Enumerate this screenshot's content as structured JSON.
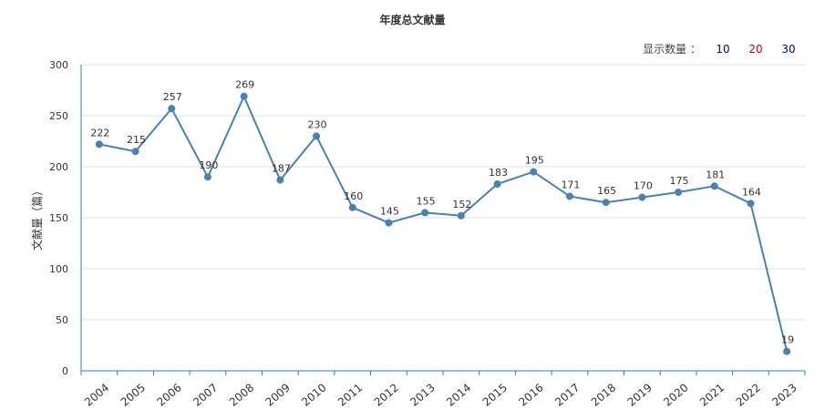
{
  "chart_data": {
    "type": "line",
    "title": "年度总文献量",
    "ylabel": "文献量（篇）",
    "xlabel": "",
    "categories": [
      "2004",
      "2005",
      "2006",
      "2007",
      "2008",
      "2009",
      "2010",
      "2011",
      "2012",
      "2013",
      "2014",
      "2015",
      "2016",
      "2017",
      "2018",
      "2019",
      "2020",
      "2021",
      "2022",
      "2023"
    ],
    "values": [
      222,
      215,
      257,
      190,
      269,
      187,
      230,
      160,
      145,
      155,
      152,
      183,
      195,
      171,
      165,
      170,
      175,
      181,
      164,
      19
    ],
    "ylim": [
      0,
      300
    ],
    "yticks": [
      0,
      50,
      100,
      150,
      200,
      250,
      300
    ],
    "grid": true,
    "line_color": "#4682b4"
  },
  "controls": {
    "display_count_label": "显示数量 ：",
    "options": [
      {
        "label": "10",
        "color": "#0000cc"
      },
      {
        "label": "20",
        "color": "#cc0000"
      },
      {
        "label": "30",
        "color": "#0000cc"
      }
    ]
  }
}
